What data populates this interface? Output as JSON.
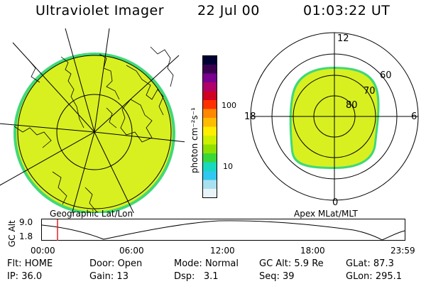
{
  "header": {
    "instrument": "Ultraviolet Imager",
    "date": "22 Jul 00",
    "time": "01:03:22 UT"
  },
  "geo_panel": {
    "label": "Geographic Lat/Lon"
  },
  "colorbar": {
    "unit_label": "photon cm⁻²s⁻¹",
    "scale": "log",
    "ticks": [
      "100",
      "10"
    ],
    "colors": [
      "#000033",
      "#3a0050",
      "#7a0090",
      "#b0006a",
      "#d00020",
      "#ff3000",
      "#ff8800",
      "#ffbb00",
      "#ffee00",
      "#ccf000",
      "#8ee000",
      "#38d838",
      "#18d8c0",
      "#30c8f0",
      "#a8e0f0",
      "#e8f4f8"
    ]
  },
  "polar_panel": {
    "label": "Apex MLat/MLT",
    "mlt_labels": [
      "12",
      "18",
      "6",
      "0"
    ],
    "mlat_labels": [
      "60",
      "70",
      "80"
    ]
  },
  "altitude_plot": {
    "ylabel": "GC Alt",
    "yticks": [
      "9.0",
      "1.8"
    ],
    "xticks": [
      "00:00",
      "06:00",
      "12:00",
      "18:00",
      "23:59"
    ],
    "current_time_marker": "01:03"
  },
  "status": {
    "flt_label": "Flt:",
    "flt_value": "HOME",
    "ip_label": "IP:",
    "ip_value": "36.0",
    "door_label": "Door:",
    "door_value": "Open",
    "gain_label": "Gain:",
    "gain_value": "13",
    "mode_label": "Mode:",
    "mode_value": "Normal",
    "dsp_label": "Dsp:",
    "dsp_value": "3.1",
    "gcalt_label": "GC Alt:",
    "gcalt_value": "5.9 Re",
    "seq_label": "Seq:",
    "seq_value": "39",
    "glat_label": "GLat:",
    "glat_value": "87.3",
    "glon_label": "GLon:",
    "glon_value": "295.1"
  },
  "colors": {
    "emission": "#d8f020",
    "emission_edge": "#40d878",
    "marker": "#e02020"
  }
}
